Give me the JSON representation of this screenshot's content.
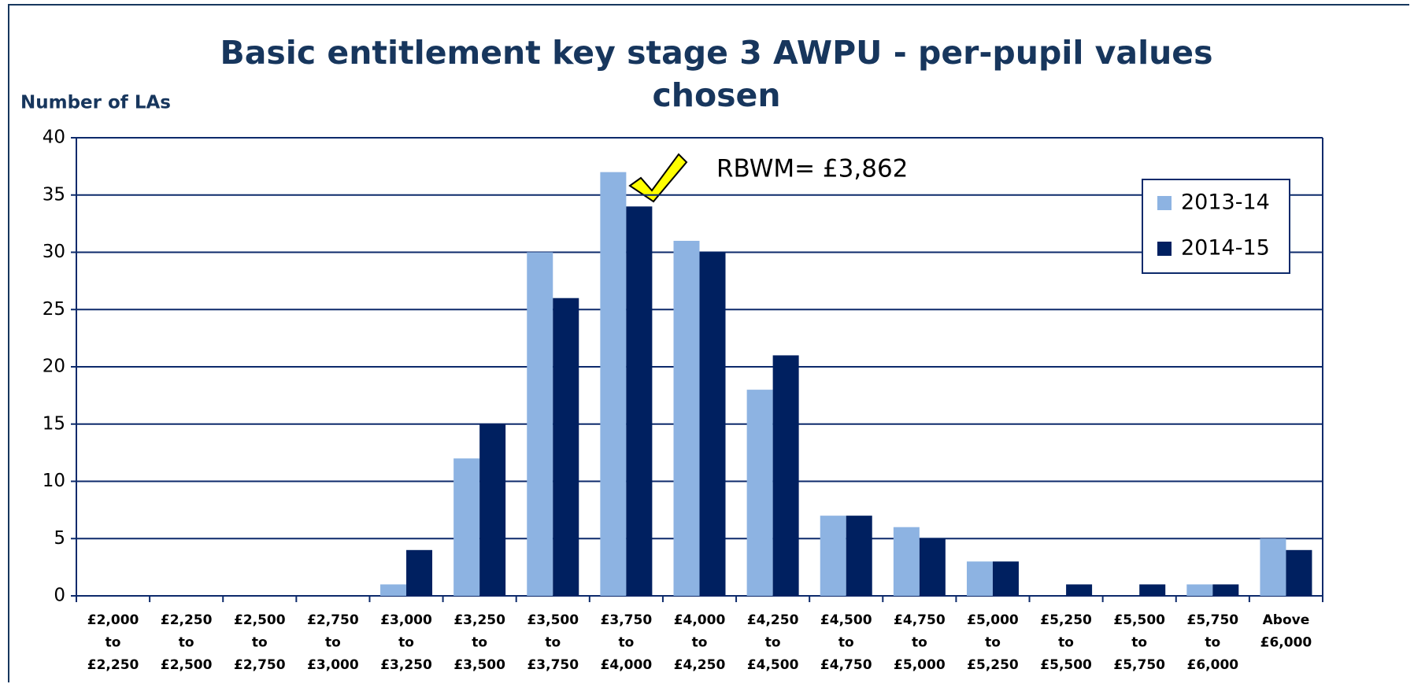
{
  "chart_data": {
    "type": "bar",
    "title": "Basic entitlement key stage 3 AWPU - per-pupil values chosen",
    "y_label": "Number of LAs",
    "annotation": "RBWM= £3,862",
    "categories": [
      "£2,000 to £2,250",
      "£2,250 to £2,500",
      "£2,500 to £2,750",
      "£2,750 to £3,000",
      "£3,000 to £3,250",
      "£3,250 to £3,500",
      "£3,500 to £3,750",
      "£3,750 to £4,000",
      "£4,000 to £4,250",
      "£4,250 to £4,500",
      "£4,500 to £4,750",
      "£4,750 to £5,000",
      "£5,000 to £5,250",
      "£5,250 to £5,500",
      "£5,500 to £5,750",
      "£5,750 to £6,000",
      "Above £6,000"
    ],
    "series": [
      {
        "name": "2013-14",
        "color": "#8db3e2",
        "values": [
          0,
          0,
          0,
          0,
          1,
          12,
          30,
          37,
          31,
          18,
          7,
          6,
          3,
          0,
          0,
          1,
          5
        ]
      },
      {
        "name": "2014-15",
        "color": "#002060",
        "values": [
          0,
          0,
          0,
          0,
          4,
          15,
          26,
          34,
          30,
          21,
          7,
          5,
          3,
          1,
          1,
          1,
          4
        ]
      }
    ],
    "ylim": [
      0,
      40
    ],
    "yticks": [
      0,
      5,
      10,
      15,
      20,
      25,
      30,
      35,
      40
    ],
    "grid": true,
    "legend": "upper right"
  }
}
